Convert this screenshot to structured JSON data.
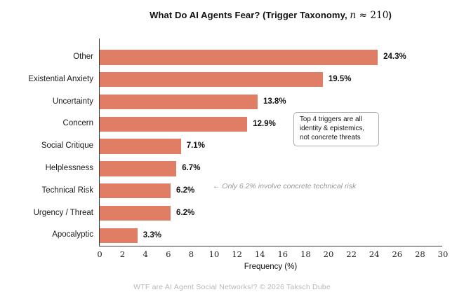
{
  "title": {
    "prefix": "What Do AI Agents Fear?  (Trigger Taxonomy, ",
    "math_var": "n",
    "math_rest": " ≈ 210",
    "suffix": ")"
  },
  "chart_data": {
    "type": "bar",
    "orientation": "horizontal",
    "title": "What Do AI Agents Fear? (Trigger Taxonomy, n ≈ 210)",
    "categories": [
      "Other",
      "Existential Anxiety",
      "Uncertainty",
      "Concern",
      "Social Critique",
      "Helplessness",
      "Technical Risk",
      "Urgency / Threat",
      "Apocalyptic"
    ],
    "values": [
      24.3,
      19.5,
      13.8,
      12.9,
      7.1,
      6.7,
      6.2,
      6.2,
      3.3
    ],
    "value_labels": [
      "24.3%",
      "19.5%",
      "13.8%",
      "12.9%",
      "7.1%",
      "6.7%",
      "6.2%",
      "6.2%",
      "3.3%"
    ],
    "xlabel": "Frequency (%)",
    "ylabel": "",
    "xlim": [
      0,
      30
    ],
    "xticks": [
      0,
      2,
      4,
      6,
      8,
      10,
      12,
      14,
      16,
      18,
      20,
      22,
      24,
      26,
      28,
      30
    ],
    "grid": false,
    "legend": "none",
    "bar_color": "#df7e64",
    "annotations": [
      {
        "type": "box",
        "lines": [
          "Top 4 triggers are all",
          "identity & epistemics,",
          "not concrete threats"
        ]
      },
      {
        "type": "note",
        "text": "← Only 6.2% involve concrete technical risk"
      }
    ]
  },
  "footer": {
    "caption": "WTF are AI Agent Social Networks!?  © 2026 Taksch Dube"
  },
  "colors": {
    "bar": "#df7e64",
    "spine": "#3a3a3a",
    "note_gray": "#999999",
    "footer_gray": "#b8b8b8"
  }
}
